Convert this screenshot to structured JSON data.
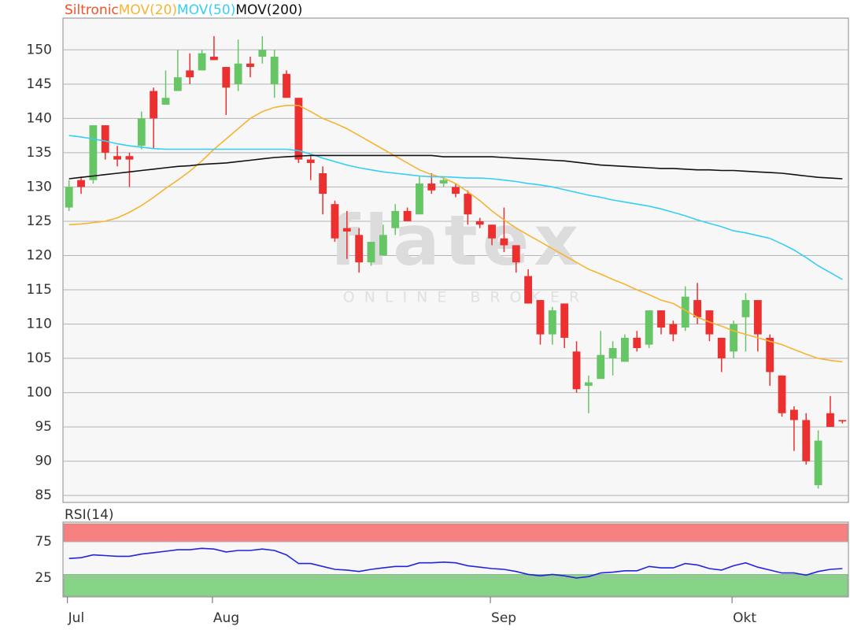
{
  "chart_data": [
    {
      "type": "candlestick",
      "categories": [
        "Jul",
        null,
        null,
        null,
        null,
        null,
        null,
        null,
        null,
        null,
        null,
        null,
        "Aug",
        null,
        null,
        null,
        null,
        null,
        null,
        null,
        null,
        null,
        null,
        null,
        null,
        null,
        null,
        null,
        null,
        null,
        null,
        null,
        null,
        null,
        null,
        "Sep",
        null,
        null,
        null,
        null,
        null,
        null,
        null,
        null,
        null,
        null,
        null,
        null,
        null,
        null,
        null,
        null,
        null,
        null,
        null,
        "Okt",
        null,
        null,
        null,
        null,
        null,
        null,
        null,
        null,
        null
      ],
      "candles": {
        "name": "Siltronic",
        "color": "#f4502a",
        "up_color": "#66c666",
        "down_color": "#ec2f2f",
        "open": [
          127,
          131,
          131,
          139,
          134.5,
          134.5,
          136,
          144,
          142,
          144,
          147,
          147,
          149,
          147.5,
          145,
          148,
          149,
          145,
          146.5,
          143,
          134,
          132,
          127.5,
          124,
          123,
          119,
          120,
          124,
          126.5,
          126,
          130.5,
          130.5,
          130,
          129,
          125,
          124.5,
          122.5,
          121.5,
          117,
          113.5,
          108.5,
          113,
          106,
          101,
          102,
          105,
          104.5,
          108,
          107,
          112,
          110,
          109.5,
          113.5,
          112,
          108,
          106,
          111,
          113.5,
          108,
          102.5,
          97.5,
          96,
          86.5,
          97,
          96
        ],
        "high": [
          131,
          131.5,
          139,
          139,
          136,
          135,
          141,
          144.5,
          147,
          150,
          149.5,
          150,
          152,
          147.5,
          151.5,
          149,
          152,
          150,
          147,
          143,
          134.5,
          133,
          128,
          126.5,
          124,
          122,
          124.5,
          127.5,
          127,
          131.5,
          132,
          131.5,
          130.5,
          129.5,
          125.5,
          124.5,
          127,
          121.5,
          118,
          113.5,
          112.5,
          113,
          107.5,
          102.5,
          109,
          107.5,
          108.5,
          109,
          112,
          112,
          110.5,
          115.5,
          116,
          112,
          108,
          110.5,
          114.5,
          113.5,
          108.5,
          102.5,
          98,
          97,
          94.5,
          99.5,
          96
        ],
        "low": [
          126.5,
          129,
          130.5,
          134,
          133,
          130,
          135.5,
          135.5,
          142,
          144,
          145,
          147,
          148.5,
          140.5,
          144,
          146,
          148,
          143,
          143,
          133.5,
          131,
          126,
          122,
          119.5,
          117.5,
          118.5,
          120,
          123,
          125,
          126,
          129,
          130,
          128.5,
          124.5,
          124,
          121.5,
          120.5,
          117.5,
          113,
          107,
          107,
          106.5,
          100,
          97,
          102,
          102.5,
          104.5,
          106,
          106.5,
          108.5,
          107.5,
          109,
          110,
          107.5,
          103,
          105,
          106,
          106,
          101,
          96.5,
          91.5,
          89.5,
          86,
          95,
          95.5
        ],
        "close": [
          130,
          130,
          139,
          135,
          134,
          134,
          140,
          140,
          143,
          146,
          146,
          149.5,
          148.5,
          144.5,
          148,
          147.5,
          150,
          149,
          143,
          134,
          133.5,
          129,
          122.5,
          123.5,
          119,
          122,
          123,
          126.5,
          125,
          130.5,
          129.5,
          131,
          129,
          126,
          124.5,
          122.5,
          121.5,
          119,
          113,
          108.5,
          112,
          108,
          100.5,
          101.5,
          105.5,
          106.5,
          108,
          106.5,
          112,
          109.5,
          108.5,
          114,
          111,
          108.5,
          105,
          110,
          113.5,
          108.5,
          103,
          97,
          96,
          90,
          93,
          95,
          95.8
        ]
      },
      "series": [
        {
          "name": "MOV(20)",
          "color": "#f7b433",
          "values": [
            124.5,
            124.6,
            124.8,
            125,
            125.5,
            126.3,
            127.3,
            128.5,
            129.8,
            131,
            132.3,
            133.8,
            135.5,
            137,
            138.5,
            140,
            141,
            141.6,
            141.9,
            141.9,
            141,
            140,
            139.3,
            138.5,
            137.5,
            136.5,
            135.5,
            134.5,
            133.5,
            132.5,
            131.8,
            131.3,
            130.5,
            129.3,
            128,
            126.5,
            125.2,
            124,
            123,
            122,
            121,
            120,
            119,
            118,
            117.3,
            116.5,
            115.8,
            115,
            114.3,
            113.5,
            113,
            112,
            111,
            110.3,
            109.7,
            109,
            108.5,
            108,
            107.5,
            107,
            106.3,
            105.6,
            105,
            104.7,
            104.5
          ]
        },
        {
          "name": "MOV(50)",
          "color": "#35cff5",
          "values": [
            137.5,
            137.3,
            137,
            136.7,
            136.3,
            136,
            135.8,
            135.6,
            135.5,
            135.5,
            135.5,
            135.5,
            135.5,
            135.5,
            135.5,
            135.5,
            135.5,
            135.5,
            135.5,
            135.3,
            134.8,
            134.2,
            133.7,
            133.2,
            132.8,
            132.5,
            132.2,
            132,
            131.8,
            131.6,
            131.5,
            131.5,
            131.4,
            131.3,
            131.3,
            131.2,
            131,
            130.8,
            130.5,
            130.3,
            130,
            129.6,
            129.2,
            128.8,
            128.5,
            128.1,
            127.8,
            127.5,
            127.2,
            126.8,
            126.3,
            125.8,
            125.2,
            124.7,
            124.2,
            123.6,
            123.3,
            122.9,
            122.5,
            121.7,
            120.8,
            119.7,
            118.5,
            117.5,
            116.5
          ]
        },
        {
          "name": "MOV(200)",
          "color": "#111111",
          "values": [
            131.2,
            131.4,
            131.6,
            131.8,
            132,
            132.2,
            132.4,
            132.6,
            132.8,
            133,
            133.1,
            133.3,
            133.4,
            133.5,
            133.7,
            133.9,
            134.1,
            134.3,
            134.4,
            134.5,
            134.6,
            134.6,
            134.6,
            134.6,
            134.6,
            134.6,
            134.6,
            134.6,
            134.6,
            134.6,
            134.6,
            134.4,
            134.4,
            134.4,
            134.4,
            134.4,
            134.3,
            134.2,
            134.1,
            134,
            133.9,
            133.8,
            133.6,
            133.4,
            133.2,
            133.1,
            133,
            132.9,
            132.8,
            132.7,
            132.7,
            132.6,
            132.5,
            132.5,
            132.4,
            132.4,
            132.3,
            132.2,
            132.1,
            132,
            131.8,
            131.6,
            131.4,
            131.3,
            131.2
          ]
        }
      ],
      "ylim": [
        84.1,
        154.4
      ],
      "yticks": [
        85,
        90,
        95,
        100,
        105,
        110,
        115,
        120,
        125,
        130,
        135,
        140,
        145,
        150
      ],
      "grid": true,
      "watermark": {
        "title": "flatex",
        "subtitle": "ONLINE BROKER"
      }
    },
    {
      "type": "line",
      "series": [
        {
          "name": "RSI(14)",
          "color": "#2424e0",
          "values": [
            52,
            53,
            57,
            56,
            55,
            55,
            58,
            60,
            62,
            64,
            64,
            66,
            65,
            61,
            63,
            63,
            65,
            63,
            57,
            45,
            45,
            41,
            37,
            36,
            34,
            37,
            39,
            41,
            41,
            46,
            46,
            47,
            46,
            42,
            40,
            38,
            37,
            34,
            30,
            28,
            30,
            28,
            25,
            27,
            32,
            33,
            35,
            35,
            41,
            39,
            39,
            45,
            43,
            38,
            36,
            42,
            46,
            40,
            36,
            32,
            32,
            29,
            34,
            37,
            38
          ]
        }
      ],
      "bands": [
        {
          "from": 75,
          "to": 100,
          "color": "#f78080"
        },
        {
          "from": 0,
          "to": 30,
          "color": "#86d486"
        }
      ],
      "ylim": [
        0,
        100
      ],
      "yticks": [
        25,
        75
      ],
      "grid": true
    }
  ]
}
